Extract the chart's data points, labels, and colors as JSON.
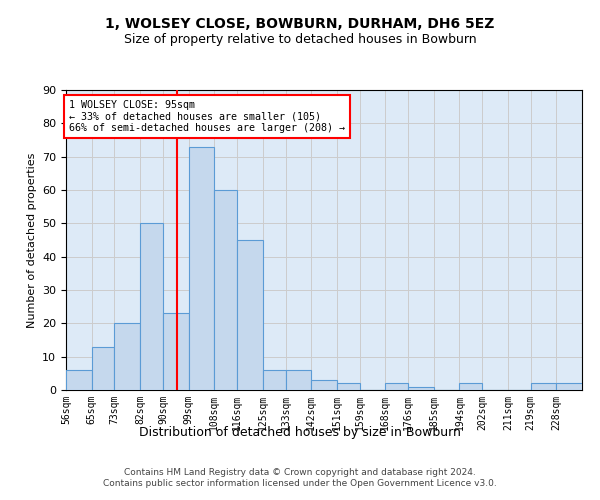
{
  "title1": "1, WOLSEY CLOSE, BOWBURN, DURHAM, DH6 5EZ",
  "title2": "Size of property relative to detached houses in Bowburn",
  "xlabel": "Distribution of detached houses by size in Bowburn",
  "ylabel": "Number of detached properties",
  "bin_labels": [
    "56sqm",
    "65sqm",
    "73sqm",
    "82sqm",
    "90sqm",
    "99sqm",
    "108sqm",
    "116sqm",
    "125sqm",
    "133sqm",
    "142sqm",
    "151sqm",
    "159sqm",
    "168sqm",
    "176sqm",
    "185sqm",
    "194sqm",
    "202sqm",
    "211sqm",
    "219sqm",
    "228sqm"
  ],
  "bar_heights": [
    6,
    13,
    20,
    50,
    23,
    73,
    60,
    45,
    6,
    6,
    3,
    2,
    0,
    2,
    1,
    0,
    2,
    0,
    0,
    2,
    2
  ],
  "bar_color": "#c5d8ed",
  "bar_edge_color": "#5b9bd5",
  "bin_edges": [
    56,
    65,
    73,
    82,
    90,
    99,
    108,
    116,
    125,
    133,
    142,
    151,
    159,
    168,
    176,
    185,
    194,
    202,
    211,
    219,
    228,
    237
  ],
  "red_line_x": 95,
  "annotation_text": "1 WOLSEY CLOSE: 95sqm\n← 33% of detached houses are smaller (105)\n66% of semi-detached houses are larger (208) →",
  "ylim": [
    0,
    90
  ],
  "yticks": [
    0,
    10,
    20,
    30,
    40,
    50,
    60,
    70,
    80,
    90
  ],
  "grid_color": "#cccccc",
  "footer1": "Contains HM Land Registry data © Crown copyright and database right 2024.",
  "footer2": "Contains public sector information licensed under the Open Government Licence v3.0.",
  "bg_color": "#ddeaf7"
}
